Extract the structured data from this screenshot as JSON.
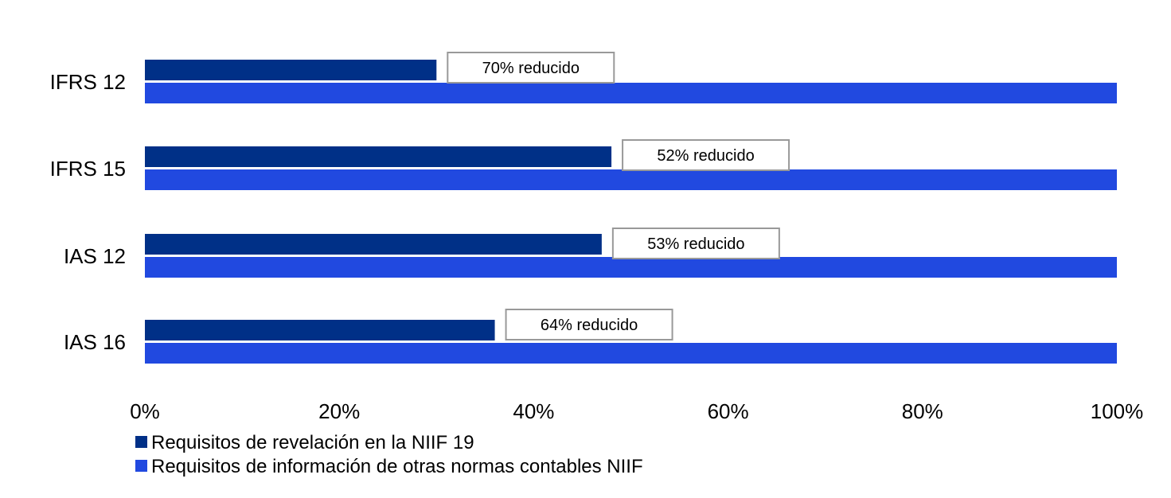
{
  "chart_data": {
    "type": "bar",
    "orientation": "horizontal",
    "categories": [
      "IFRS 12",
      "IFRS 15",
      "IAS 12",
      "IAS 16"
    ],
    "series": [
      {
        "name": "Requisitos de revelación en la NIIF 19",
        "color": "#003087",
        "values": [
          30,
          48,
          47,
          36
        ]
      },
      {
        "name": "Requisitos de información de otras normas contables NIIF",
        "color": "#2149E0",
        "values": [
          100,
          100,
          100,
          100
        ]
      }
    ],
    "annotations": [
      "70% reducido",
      "52% reducido",
      "53% reducido",
      "64% reducido"
    ],
    "xlim": [
      0,
      100
    ],
    "xticks": [
      "0%",
      "20%",
      "40%",
      "60%",
      "80%",
      "100%"
    ],
    "grid": false,
    "legend_placement": "bottom-left",
    "title": "",
    "xlabel": "",
    "ylabel": ""
  }
}
